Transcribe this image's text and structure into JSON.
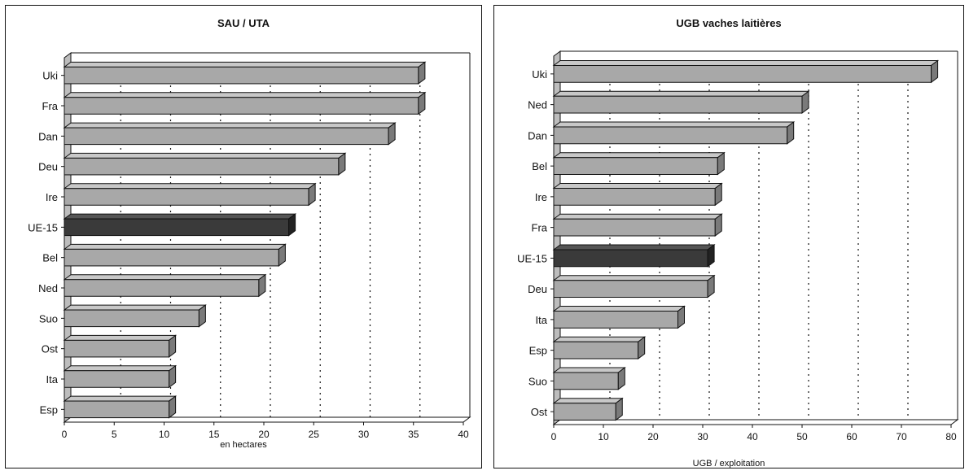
{
  "chart_data": [
    {
      "type": "bar",
      "orientation": "horizontal",
      "title": "SAU / UTA",
      "xlabel": "en hectares",
      "ylabel": "",
      "categories": [
        "Uki",
        "Fra",
        "Dan",
        "Deu",
        "Ire",
        "UE-15",
        "Bel",
        "Ned",
        "Suo",
        "Ost",
        "Ita",
        "Esp"
      ],
      "values": [
        35.5,
        35.5,
        32.5,
        27.5,
        24.5,
        22.5,
        21.5,
        19.5,
        13.5,
        10.5,
        10.5,
        10.5
      ],
      "highlight": "UE-15",
      "xlim": [
        0,
        40
      ],
      "xticks": [
        0,
        5,
        10,
        15,
        20,
        25,
        30,
        35,
        40
      ],
      "grid": "vertical-dotted",
      "colors": {
        "bar": "#a8a8a8",
        "bar_highlight": "#3a3a3a"
      }
    },
    {
      "type": "bar",
      "orientation": "horizontal",
      "title": "UGB vaches laitières",
      "xlabel": "UGB  / exploitation",
      "ylabel": "",
      "categories": [
        "Uki",
        "Ned",
        "Dan",
        "Bel",
        "Ire",
        "Fra",
        "UE-15",
        "Deu",
        "Ita",
        "Esp",
        "Suo",
        "Ost"
      ],
      "values": [
        76,
        50,
        47,
        33,
        32.5,
        32.5,
        31,
        31,
        25,
        17,
        13,
        12.5
      ],
      "highlight": "UE-15",
      "xlim": [
        0,
        80
      ],
      "xticks": [
        0,
        10,
        20,
        30,
        40,
        50,
        60,
        70,
        80
      ],
      "grid": "vertical-dotted",
      "colors": {
        "bar": "#a8a8a8",
        "bar_highlight": "#3a3a3a"
      }
    }
  ]
}
